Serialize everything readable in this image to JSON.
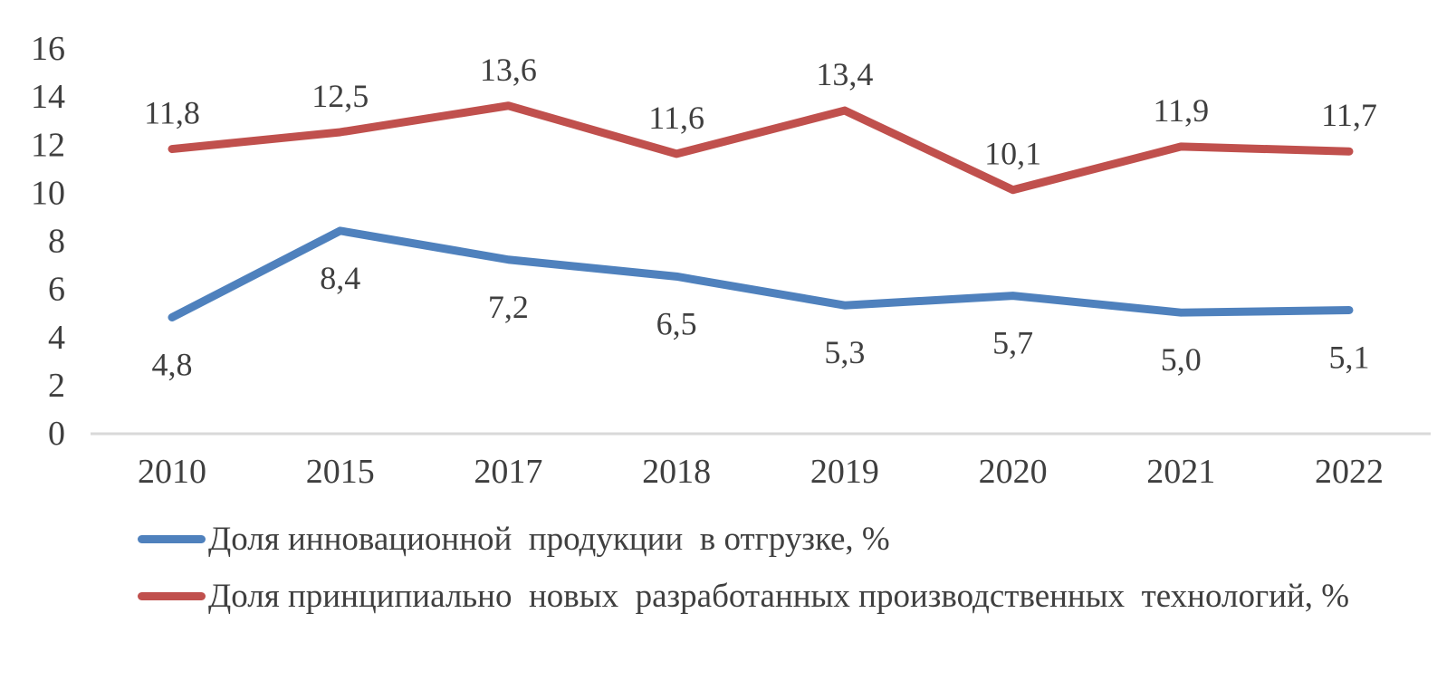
{
  "chart_data": {
    "type": "line",
    "categories": [
      "2010",
      "2015",
      "2017",
      "2018",
      "2019",
      "2020",
      "2021",
      "2022"
    ],
    "series": [
      {
        "name": "Доля инновационной  продукции  в отгрузке, %",
        "values": [
          4.8,
          8.4,
          7.2,
          6.5,
          5.3,
          5.7,
          5.0,
          5.1
        ],
        "data_labels": [
          "4,8",
          "8,4",
          "7,2",
          "6,5",
          "5,3",
          "5,7",
          "5,0",
          "5,1"
        ],
        "color": "#4f81bd",
        "label_position": "below"
      },
      {
        "name": "Доля принципиально  новых  разработанных производственных  технологий, %",
        "values": [
          11.8,
          12.5,
          13.6,
          11.6,
          13.4,
          10.1,
          11.9,
          11.7
        ],
        "data_labels": [
          "11,8",
          "12,5",
          "13,6",
          "11,6",
          "13,4",
          "10,1",
          "11,9",
          "11,7"
        ],
        "color": "#c0504d",
        "label_position": "above"
      }
    ],
    "title": "",
    "xlabel": "",
    "ylabel": "",
    "ylim": [
      0,
      16
    ],
    "yticks": [
      "0",
      "2",
      "4",
      "6",
      "8",
      "10",
      "12",
      "14",
      "16"
    ],
    "grid": false,
    "legend_position": "bottom-left",
    "axis_color": "#d9d9d9",
    "text_color": "#3f3f3f"
  }
}
